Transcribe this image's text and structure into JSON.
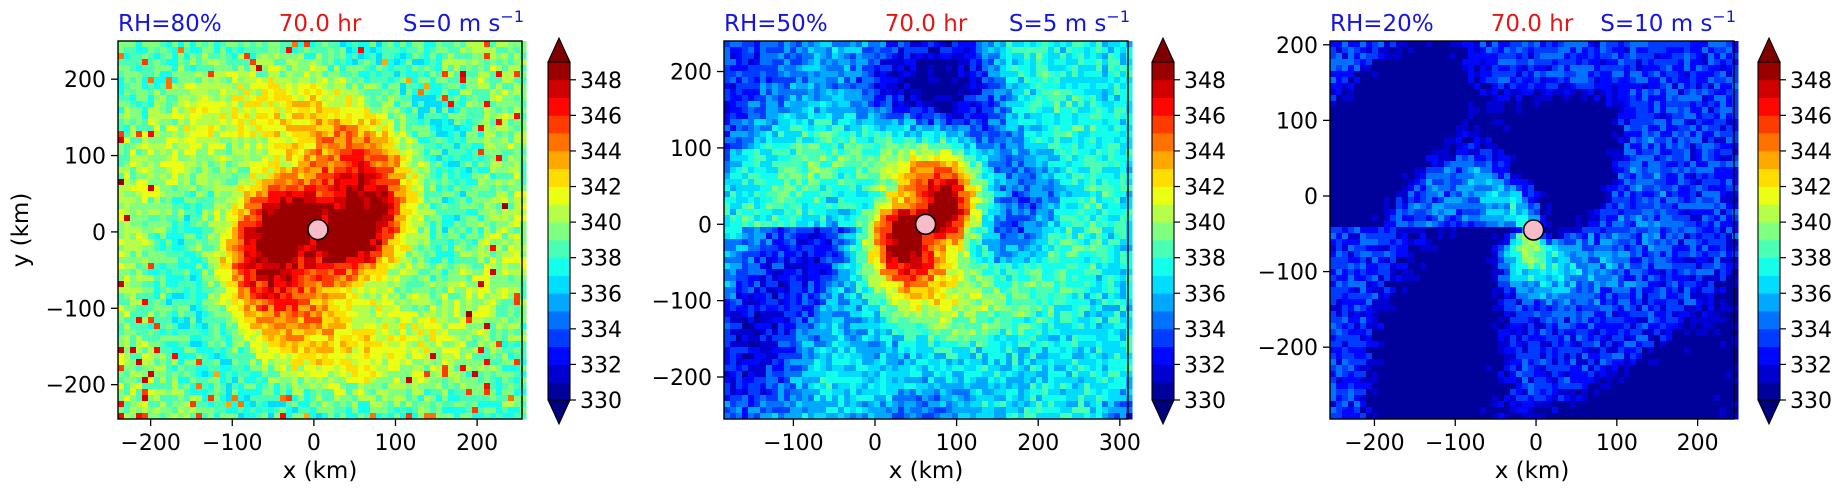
{
  "chart_data": [
    {
      "type": "heatmap",
      "title_left": "RH=80%",
      "title_center": "70.0 hr",
      "title_right": "S=0 m s",
      "title_right_superscript": "−1",
      "xlabel": "x (km)",
      "ylabel": "y (km)",
      "xlim": [
        -240,
        255
      ],
      "ylim": [
        -245,
        250
      ],
      "xticks": [
        -200,
        -100,
        0,
        100,
        200
      ],
      "yticks": [
        -200,
        -100,
        0,
        100,
        200
      ],
      "xtick_labels": [
        "−200",
        "−100",
        "0",
        "100",
        "200"
      ],
      "ytick_labels": [
        "−200",
        "−100",
        "0",
        "100",
        "200"
      ],
      "center_marker": {
        "x": 5,
        "y": 3
      },
      "colorbar": {
        "levels": [
          330,
          331,
          332,
          333,
          334,
          335,
          336,
          337,
          338,
          339,
          340,
          341,
          342,
          343,
          344,
          345,
          346,
          347,
          348,
          349
        ],
        "tick_values": [
          330,
          332,
          334,
          336,
          338,
          340,
          342,
          344,
          346,
          348
        ],
        "tick_labels": [
          "330",
          "332",
          "334",
          "336",
          "338",
          "340",
          "342",
          "344",
          "346",
          "348"
        ],
        "extend": "both"
      }
    },
    {
      "type": "heatmap",
      "title_left": "RH=50%",
      "title_center": "70.0 hr",
      "title_right": "S=5 m s",
      "title_right_superscript": "−1",
      "xlabel": "x (km)",
      "ylabel": "",
      "xlim": [
        -185,
        310
      ],
      "ylim": [
        -255,
        240
      ],
      "xticks": [
        -100,
        0,
        100,
        200,
        300
      ],
      "yticks": [
        -200,
        -100,
        0,
        100,
        200
      ],
      "xtick_labels": [
        "−100",
        "0",
        "100",
        "200",
        "300"
      ],
      "ytick_labels": [
        "−200",
        "−100",
        "0",
        "100",
        "200"
      ],
      "center_marker": {
        "x": 62,
        "y": 0
      },
      "colorbar": {
        "levels": [
          330,
          331,
          332,
          333,
          334,
          335,
          336,
          337,
          338,
          339,
          340,
          341,
          342,
          343,
          344,
          345,
          346,
          347,
          348,
          349
        ],
        "tick_values": [
          330,
          332,
          334,
          336,
          338,
          340,
          342,
          344,
          346,
          348
        ],
        "tick_labels": [
          "330",
          "332",
          "334",
          "336",
          "338",
          "340",
          "342",
          "344",
          "346",
          "348"
        ],
        "extend": "both"
      }
    },
    {
      "type": "heatmap",
      "title_left": "RH=20%",
      "title_center": "70.0 hr",
      "title_right": "S=10 m s",
      "title_right_superscript": "−1",
      "xlabel": "x (km)",
      "ylabel": "",
      "xlim": [
        -255,
        245
      ],
      "ylim": [
        -295,
        205
      ],
      "xticks": [
        -200,
        -100,
        0,
        100,
        200
      ],
      "yticks": [
        -200,
        -100,
        0,
        100,
        200
      ],
      "xtick_labels": [
        "−200",
        "−100",
        "0",
        "100",
        "200"
      ],
      "ytick_labels": [
        "−200",
        "−100",
        "0",
        "100",
        "200"
      ],
      "center_marker": {
        "x": -3,
        "y": -45
      },
      "colorbar": {
        "levels": [
          330,
          331,
          332,
          333,
          334,
          335,
          336,
          337,
          338,
          339,
          340,
          341,
          342,
          343,
          344,
          345,
          346,
          347,
          348,
          349
        ],
        "tick_values": [
          330,
          332,
          334,
          336,
          338,
          340,
          342,
          344,
          346,
          348
        ],
        "tick_labels": [
          "330",
          "332",
          "334",
          "336",
          "338",
          "340",
          "342",
          "344",
          "346",
          "348"
        ],
        "extend": "both"
      }
    }
  ]
}
